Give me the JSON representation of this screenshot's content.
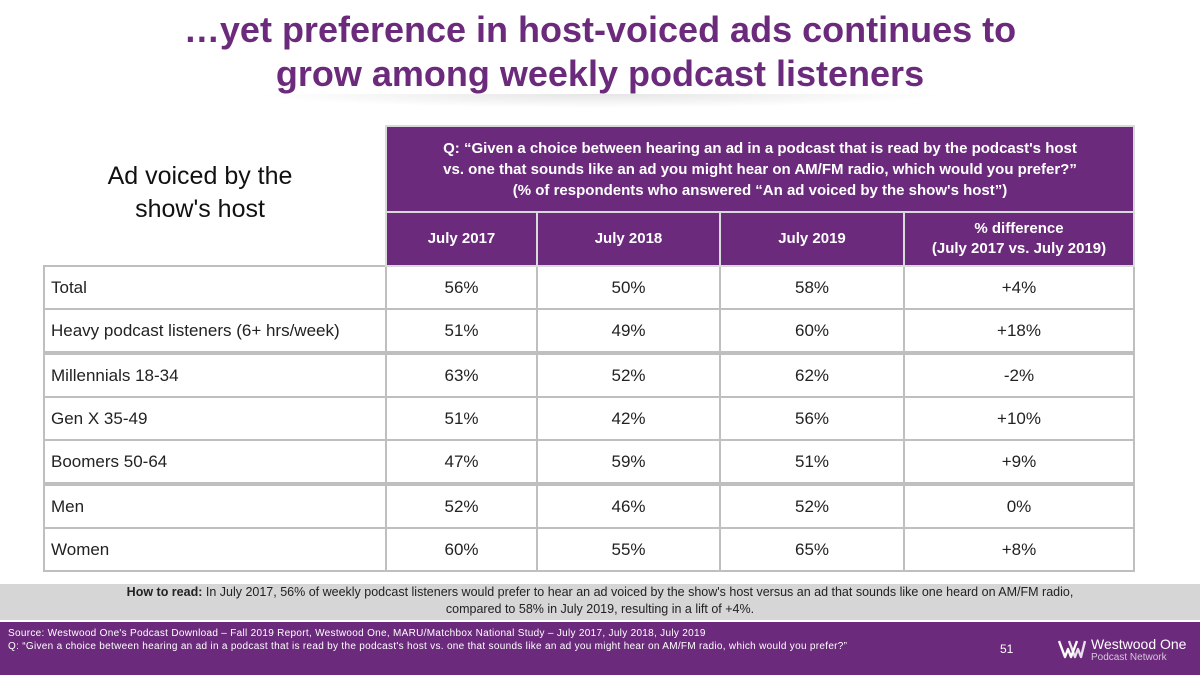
{
  "title": {
    "line1": "…yet preference in host-voiced ads continues to",
    "line2": "grow among weekly podcast listeners"
  },
  "left_label": {
    "line1": "Ad voiced by the",
    "line2": "show's host"
  },
  "question": {
    "line1": "Q: “Given a choice between hearing an ad in a podcast that is read by the podcast's host",
    "line2": "vs. one that sounds like an ad you might hear on AM/FM radio, which would you prefer?”",
    "line3": "(% of respondents who answered “An ad voiced by the show's host”)"
  },
  "columns": [
    {
      "label": "July 2017",
      "sub": ""
    },
    {
      "label": "July 2018",
      "sub": ""
    },
    {
      "label": "July 2019",
      "sub": ""
    },
    {
      "label": "% difference",
      "sub": "(July 2017 vs. July 2019)"
    }
  ],
  "rows": [
    {
      "label": "Total",
      "values": [
        "56%",
        "50%",
        "58%",
        "+4%"
      ]
    },
    {
      "label": "Heavy podcast listeners (6+ hrs/week)",
      "values": [
        "51%",
        "49%",
        "60%",
        "+18%"
      ]
    },
    {
      "label": "Millennials 18-34",
      "values": [
        "63%",
        "52%",
        "62%",
        "-2%"
      ]
    },
    {
      "label": "Gen X 35-49",
      "values": [
        "51%",
        "42%",
        "56%",
        "+10%"
      ]
    },
    {
      "label": "Boomers 50-64",
      "values": [
        "47%",
        "59%",
        "51%",
        "+9%"
      ]
    },
    {
      "label": "Men",
      "values": [
        "52%",
        "46%",
        "52%",
        "0%"
      ]
    },
    {
      "label": "Women",
      "values": [
        "60%",
        "55%",
        "65%",
        "+8%"
      ]
    }
  ],
  "how_to_read": {
    "label": "How to read:",
    "line1": " In July 2017, 56% of weekly podcast listeners would prefer to hear an ad voiced by the show's host versus an ad that sounds like one heard on AM/FM radio,",
    "line2": "compared to 58% in July 2019, resulting in a lift of +4%."
  },
  "footer": {
    "source": "Source: Westwood One's Podcast Download – Fall 2019 Report, Westwood One, MARU/Matchbox National Study – July 2017, July 2018, July 2019",
    "question": "Q: “Given a choice between hearing an ad in a podcast that is read by the podcast's host vs. one that sounds like an ad you might hear on AM/FM radio, which would you prefer?”",
    "page_number": "51",
    "logo_name": "Westwood One",
    "logo_sub": "Podcast Network"
  },
  "colors": {
    "brand_purple": "#6b2a7b",
    "how_to_read_bg": "#d6d6d6"
  }
}
